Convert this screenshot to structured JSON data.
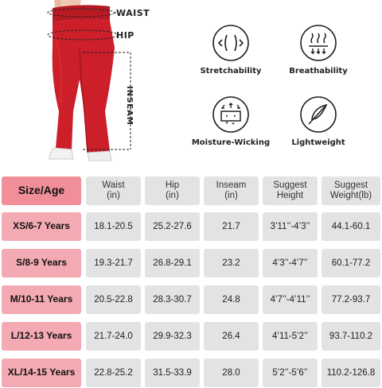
{
  "figure": {
    "waist_label": "WAIST",
    "hip_label": "HIP",
    "inseam_label": "INSEAM"
  },
  "features": [
    {
      "label": "Stretchability",
      "icon": "stretch-icon"
    },
    {
      "label": "Breathability",
      "icon": "breathability-icon"
    },
    {
      "label": "Moisture-Wicking",
      "icon": "moisture-wicking-icon"
    },
    {
      "label": "Lightweight",
      "icon": "feather-icon"
    }
  ],
  "table": {
    "corner": "Size/Age",
    "headers": [
      {
        "line1": "Waist",
        "line2": "(in)"
      },
      {
        "line1": "Hip",
        "line2": "(in)"
      },
      {
        "line1": "Inseam",
        "line2": "(in)"
      },
      {
        "line1": "Suggest",
        "line2": "Height"
      },
      {
        "line1": "Suggest",
        "line2": "Weight(lb)"
      }
    ],
    "rows": [
      {
        "size": "XS/6-7 Years",
        "values": [
          "18.1-20.5",
          "25.2-27.6",
          "21.7",
          "3’11’’-4’3’’",
          "44.1-60.1"
        ]
      },
      {
        "size": "S/8-9 Years",
        "values": [
          "19.3-21.7",
          "26.8-29.1",
          "23.2",
          "4’3’’-4’7’’",
          "60.1-77.2"
        ]
      },
      {
        "size": "M/10-11 Years",
        "values": [
          "20.5-22.8",
          "28.3-30.7",
          "24.8",
          "4’7’’-4’11’’",
          "77.2-93.7"
        ]
      },
      {
        "size": "L/12-13 Years",
        "values": [
          "21.7-24.0",
          "29.9-32.3",
          "26.4",
          "4’11-5’2’’",
          "93.7-110.2"
        ]
      },
      {
        "size": "XL/14-15 Years",
        "values": [
          "22.8-25.2",
          "31.5-33.9",
          "28.0",
          "5’2’’-5’6’’",
          "110.2-126.8"
        ]
      }
    ]
  },
  "colors": {
    "pants": "#cc1f2a",
    "corner": "#f08f9a",
    "row_label": "#f3aab2",
    "cell": "#e3e3e3"
  }
}
